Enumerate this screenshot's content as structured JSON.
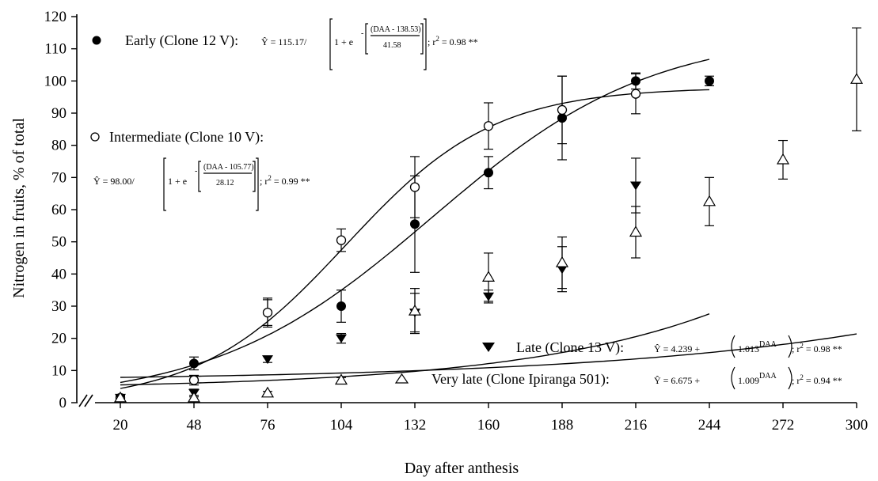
{
  "chart_data": {
    "type": "scatter",
    "title": "",
    "xlabel": "Day after anthesis",
    "ylabel": "Nitrogen in fruits, % of total",
    "x_ticks": [
      20,
      48,
      76,
      104,
      132,
      160,
      188,
      216,
      244,
      272,
      300
    ],
    "x_tick_labels": [
      "20",
      "48",
      "76",
      "104",
      "132",
      "160",
      "188",
      "216",
      "244",
      "272",
      "300"
    ],
    "y_ticks": [
      0,
      10,
      20,
      30,
      40,
      50,
      60,
      70,
      80,
      90,
      100,
      110,
      120
    ],
    "y_tick_labels": [
      "0",
      "10",
      "20",
      "30",
      "40",
      "50",
      "60",
      "70",
      "80",
      "90",
      "100",
      "110",
      "120"
    ],
    "xlim": [
      20,
      300
    ],
    "ylim": [
      0,
      120
    ],
    "axis_break": true,
    "grid": false,
    "series": [
      {
        "name": "Early (Clone 12 V):",
        "marker": "filled-circle",
        "x": [
          20,
          48,
          76,
          104,
          132,
          160,
          188,
          216,
          244
        ],
        "y": [
          1.5,
          12.2,
          28.0,
          30.0,
          55.5,
          71.5,
          88.5,
          100.0,
          100.0
        ],
        "error": [
          0.8,
          2.0,
          4.5,
          5.0,
          15.0,
          5.0,
          13.0,
          2.5,
          1.5
        ],
        "fit": {
          "model": "logistic",
          "a": 115.17,
          "b": 138.53,
          "c": 41.58,
          "x_range": [
            20,
            244
          ]
        },
        "equation": {
          "lead": "Ŷ = 115.17/",
          "one": "1 + e",
          "minus": "-",
          "numer": "(DAA - 138.53)",
          "denom": "41.58",
          "tail": "; r",
          "sup": "2",
          "tail2": " = 0.98 **"
        }
      },
      {
        "name": "Intermediate (Clone 10 V):",
        "marker": "open-circle",
        "x": [
          20,
          48,
          76,
          104,
          132,
          160,
          188,
          216
        ],
        "y": [
          1.5,
          7.0,
          28.0,
          50.5,
          67.0,
          86.0,
          91.0,
          96.0
        ],
        "error": [
          0.8,
          1.5,
          4.0,
          3.5,
          9.5,
          7.2,
          10.5,
          6.2
        ],
        "fit": {
          "model": "logistic",
          "a": 98.0,
          "b": 105.77,
          "c": 28.12,
          "x_range": [
            20,
            244
          ]
        },
        "equation": {
          "lead": "Ŷ = 98.00/",
          "one": "1 + e",
          "minus": "-",
          "numer": "(DAA - 105.77)",
          "denom": "28.12",
          "tail": "; r",
          "sup": "2",
          "tail2": " = 0.99 **"
        }
      },
      {
        "name": "Late (Clone 13 V):",
        "marker": "filled-triangle-down",
        "x": [
          20,
          48,
          76,
          104,
          132,
          160,
          188,
          216
        ],
        "y": [
          1.5,
          3.0,
          13.5,
          20.0,
          28.0,
          33.0,
          41.5,
          67.5
        ],
        "error": [
          0.6,
          1.2,
          1.0,
          1.5,
          6.0,
          2.0,
          7.0,
          8.5
        ],
        "fit": {
          "model": "exponential",
          "a": 4.239,
          "b": 1.013,
          "x_range": [
            20,
            244
          ]
        },
        "equation": {
          "lead": "Ŷ = 4.239 + ",
          "base": "1.013",
          "exp": "DAA",
          "tail": "; r",
          "sup": "2",
          "tail2": " = 0.98 **"
        }
      },
      {
        "name": "Very late (Clone Ipiranga 501):",
        "marker": "open-triangle-up",
        "x": [
          20,
          48,
          76,
          104,
          132,
          160,
          188,
          216,
          244,
          272,
          300
        ],
        "y": [
          1.5,
          1.5,
          3.0,
          7.0,
          28.5,
          39.0,
          43.5,
          53.0,
          62.5,
          75.5,
          100.5
        ],
        "error": [
          0.6,
          0.8,
          0.5,
          0.8,
          7.0,
          7.5,
          8.0,
          8.0,
          7.5,
          6.0,
          16.0
        ],
        "fit": {
          "model": "exponential",
          "a": 6.675,
          "b": 1.009,
          "x_range": [
            20,
            300
          ]
        },
        "equation": {
          "lead": "Ŷ = 6.675 + ",
          "base": "1.009",
          "exp": "DAA",
          "tail": "; r",
          "sup": "2",
          "tail2": " = 0.94 **"
        }
      }
    ]
  }
}
